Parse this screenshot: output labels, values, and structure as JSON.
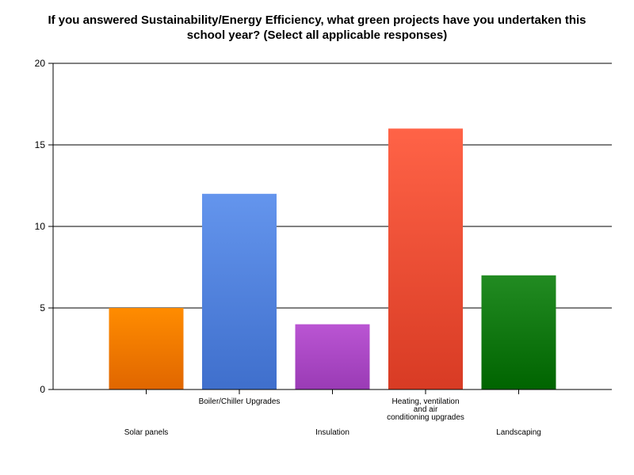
{
  "chart_data": {
    "type": "bar",
    "title_lines": [
      "If you answered Sustainability/Energy Efficiency, what green projects have you undertaken this",
      "school year? (Select all applicable responses)"
    ],
    "categories": [
      [
        "Solar panels"
      ],
      [
        "Boiler/Chiller Upgrades"
      ],
      [
        "Insulation"
      ],
      [
        "Heating, ventilation",
        "and air",
        "conditioning upgrades"
      ],
      [
        "Landscaping"
      ]
    ],
    "values": [
      5,
      12,
      4,
      16,
      7
    ],
    "ylim": [
      0,
      20
    ],
    "yticks": [
      0,
      5,
      10,
      15,
      20
    ],
    "xlabel": "",
    "ylabel": "",
    "grid": true,
    "legend": "none",
    "colors": [
      {
        "top": "#ff8c00",
        "bottom": "#e06600"
      },
      {
        "top": "#6495ed",
        "bottom": "#3f6fcc"
      },
      {
        "top": "#ba55d3",
        "bottom": "#9a3bb5"
      },
      {
        "top": "#ff6347",
        "bottom": "#d83b24"
      },
      {
        "top": "#228b22",
        "bottom": "#006400"
      }
    ]
  }
}
